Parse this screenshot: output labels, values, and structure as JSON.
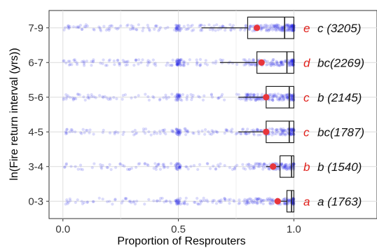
{
  "chart_data": {
    "type": "scatter",
    "title": "",
    "xlabel": "Proportion of Resprouters",
    "ylabel": "ln(Fire return interval (yrs))",
    "xlim": [
      -0.06,
      1.36
    ],
    "x_ticks": [
      {
        "value": 0.0,
        "label": "0.0"
      },
      {
        "value": 0.5,
        "label": "0.5"
      },
      {
        "value": 1.0,
        "label": "1.0"
      }
    ],
    "grid": true,
    "point_color": "#1f1fe8",
    "mean_color": "#e8353b",
    "box_color": "#222222",
    "letter_color": "#e0201b",
    "categories": [
      {
        "label": "0-3",
        "q1": 0.97,
        "median": 0.99,
        "q3": 1.0,
        "mean": 0.93,
        "letter": "a",
        "group": "a (1763)"
      },
      {
        "label": "3-4",
        "q1": 0.94,
        "median": 0.99,
        "q3": 1.0,
        "mean": 0.91,
        "letter": "b",
        "group": "b (1540)"
      },
      {
        "label": "4-5",
        "q1": 0.88,
        "median": 0.98,
        "q3": 1.0,
        "mean": 0.88,
        "letter": "c",
        "group": "bc(1787)"
      },
      {
        "label": "5-6",
        "q1": 0.88,
        "median": 0.98,
        "q3": 1.0,
        "mean": 0.88,
        "letter": "c",
        "group": "b (2145)"
      },
      {
        "label": "6-7",
        "q1": 0.84,
        "median": 0.97,
        "q3": 1.0,
        "mean": 0.86,
        "letter": "d",
        "group": "bc(2269)"
      },
      {
        "label": "7-9",
        "q1": 0.8,
        "median": 0.96,
        "q3": 1.0,
        "mean": 0.84,
        "letter": "e",
        "group": "c (3205)"
      }
    ]
  }
}
